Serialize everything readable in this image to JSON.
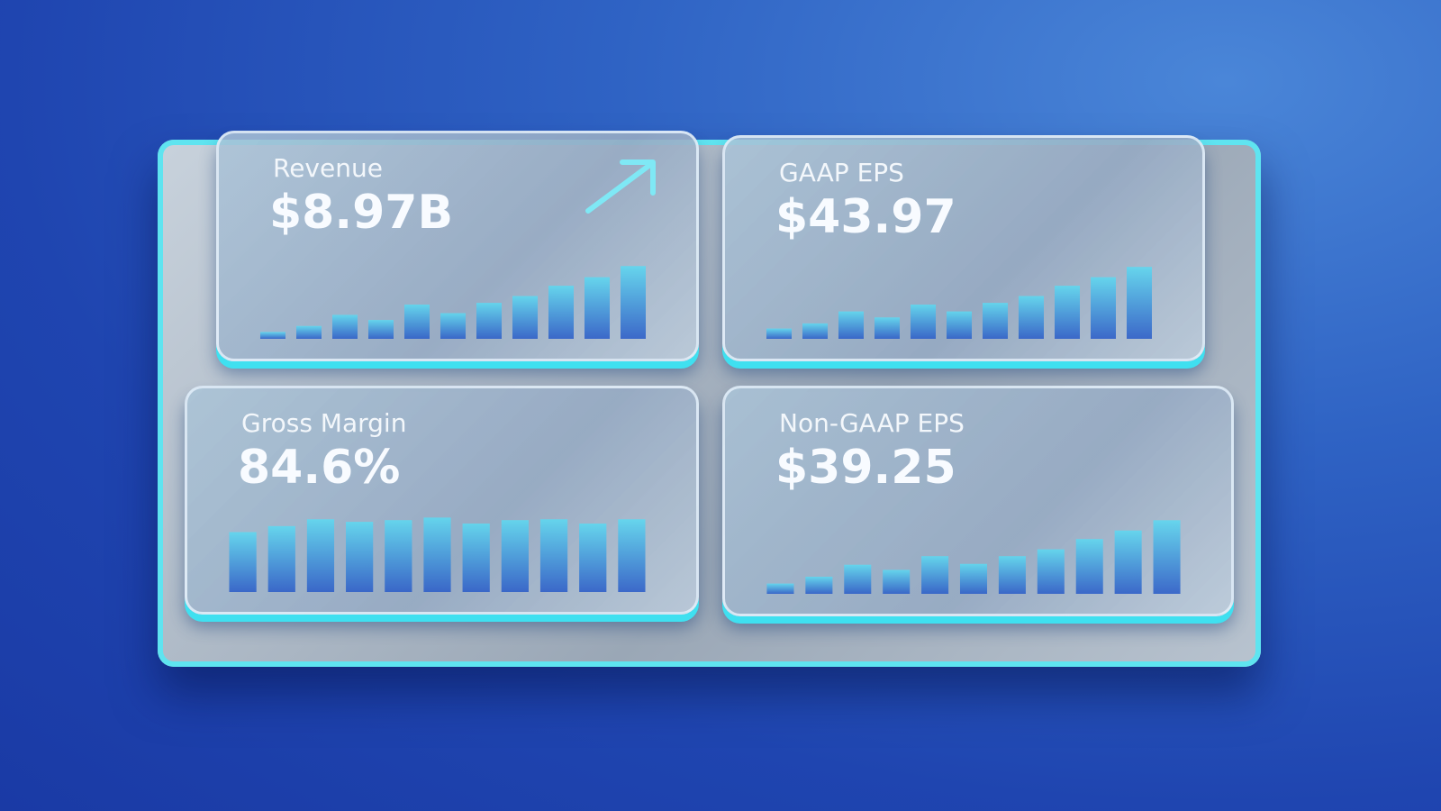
{
  "cards": [
    {
      "label": "Revenue",
      "value": "$8.97B",
      "bars": [
        8,
        15,
        28,
        22,
        40,
        30,
        42,
        50,
        62,
        72,
        85
      ]
    },
    {
      "label": "GAAP EPS",
      "value": "$43.97",
      "bars": [
        12,
        18,
        32,
        25,
        40,
        32,
        42,
        50,
        62,
        72,
        84
      ]
    },
    {
      "label": "Gross Margin",
      "value": "84.6%",
      "bars": [
        70,
        77,
        85,
        82,
        84,
        87,
        80,
        84,
        85,
        80,
        85
      ]
    },
    {
      "label": "Non-GAAP EPS",
      "value": "$39.25",
      "bars": [
        12,
        20,
        34,
        28,
        44,
        35,
        44,
        52,
        64,
        74,
        86
      ]
    }
  ]
}
